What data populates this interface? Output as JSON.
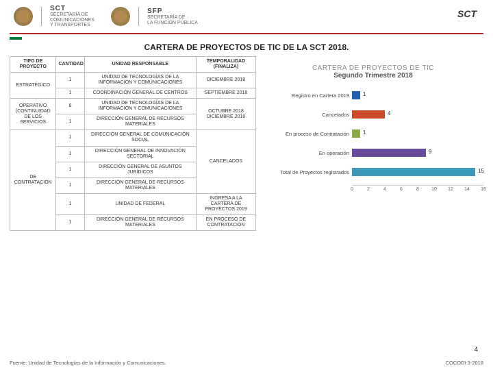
{
  "header": {
    "sct_label": "SCT",
    "logo1_top": "SCT",
    "logo1_bottom": "SECRETARÍA DE\nCOMUNICACIONES\nY TRANSPORTES",
    "logo2_top": "SFP",
    "logo2_bottom": "SECRETARÍA DE\nLA FUNCIÓN PÚBLICA"
  },
  "title": "CARTERA DE PROYECTOS DE TIC DE LA SCT 2018.",
  "table": {
    "headers": [
      "TIPO DE PROYECTO",
      "CANTIDAD",
      "UNIDAD RESPONSABLE",
      "TEMPORALIDAD (FINALIZA)"
    ],
    "groups": [
      {
        "tipo": "ESTRATÉGICO",
        "rows": [
          {
            "cant": "1",
            "unid": "UNIDAD DE TECNOLOGÍAS DE LA INFORMACIÓN Y COMUNICACIONES",
            "temp": "DICIEMBRE 2018"
          },
          {
            "cant": "1",
            "unid": "COORDINACIÓN GENERAL DE CENTROS",
            "temp": "SEPTIEMBRE 2018"
          }
        ]
      },
      {
        "tipo": "OPERATIVO (CONTINUIDAD DE LOS SERVICIOS",
        "rows": [
          {
            "cant": "6",
            "unid": "UNIDAD DE TECNOLOGÍAS DE LA INFORMACIÓN Y COMUNICACIONES",
            "temp": "OCTUBRE 2018\nDICIEMBRE 2018",
            "temp_rowspan": 2
          },
          {
            "cant": "1",
            "unid": "DIRECCIÓN GENERAL DE RECURSOS MATERIALES"
          }
        ]
      },
      {
        "tipo": "DE CONTRATACIÓN",
        "rows": [
          {
            "cant": "1",
            "unid": "DIRECCIÓN GENERAL DE COMUNICACIÓN SOCIAL",
            "temp": "CANCELADOS",
            "temp_rowspan": 4
          },
          {
            "cant": "1",
            "unid": "DIRECCIÓN GENERAL DE INNOVACIÓN SECTORIAL"
          },
          {
            "cant": "1",
            "unid": "DIRECCIÓN GENERAL DE ASUNTOS JURÍDICOS"
          },
          {
            "cant": "1",
            "unid": "DIRECCIÓN GENERAL DE RECURSOS MATERIALES"
          },
          {
            "cant": "1",
            "unid": "UNIDAD DE FEDERAL",
            "temp": "INGRESA A LA CARTERA DE PROYECTOS 2019"
          },
          {
            "cant": "1",
            "unid": "DIRECCIÓN GENERAL DE RECURSOS MATERIALES",
            "temp": "EN PROCESO DE CONTRATACIÓN"
          }
        ]
      }
    ]
  },
  "chart": {
    "title": "CARTERA DE PROYECTOS DE TIC",
    "subtitle": "Segundo Trimestre 2018",
    "max": 16,
    "ticks": [
      0,
      2,
      4,
      6,
      8,
      10,
      12,
      14,
      16
    ],
    "bars": [
      {
        "label": "Registro en Cartera 2019",
        "value": 1,
        "color": "#2060a8"
      },
      {
        "label": "Cancelados",
        "value": 4,
        "color": "#c84c2c"
      },
      {
        "label": "En proceso de Contratación",
        "value": 1,
        "color": "#8aa843"
      },
      {
        "label": "En operación",
        "value": 9,
        "color": "#6a4a9c"
      },
      {
        "label": "Total de Proyectos registrados",
        "value": 15,
        "color": "#3a9ab8"
      }
    ]
  },
  "footer": {
    "source": "Fuente: Unidad de Tecnologías de la Información y Comunicaciones.",
    "right": "COCODI 3-2018",
    "page": "4"
  },
  "colors": {
    "red_bar": "#b02828",
    "green_strip": "#0a7a3c"
  }
}
